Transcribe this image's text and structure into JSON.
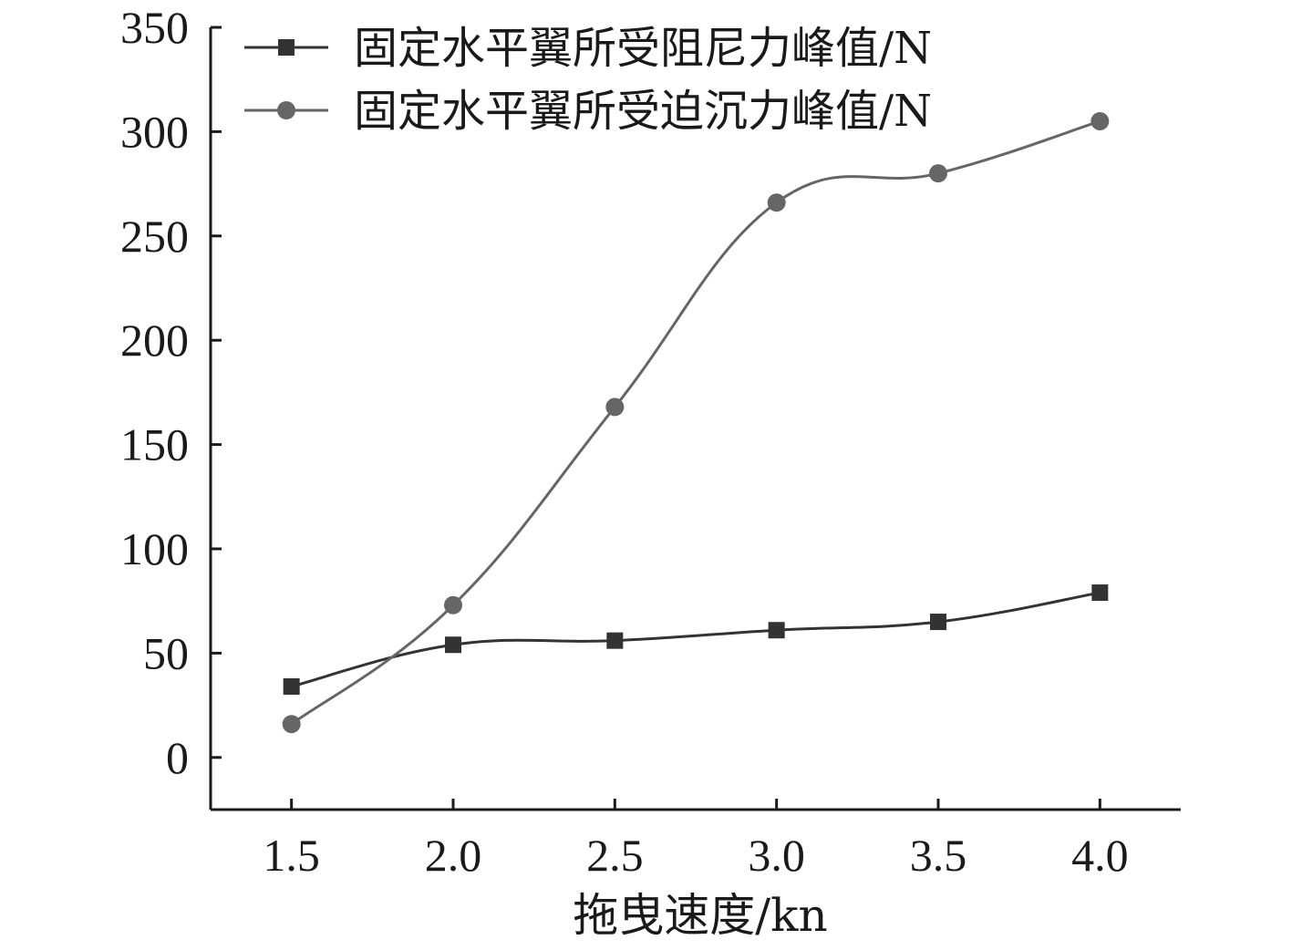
{
  "chart_data": {
    "type": "line",
    "xlabel": "拖曳速度/kn",
    "ylabel": "",
    "x": [
      1.5,
      2.0,
      2.5,
      3.0,
      3.5,
      4.0
    ],
    "x_tick_labels": [
      "1.5",
      "2.0",
      "2.5",
      "3.0",
      "3.5",
      "4.0"
    ],
    "xlim": [
      1.25,
      4.25
    ],
    "ylim": [
      -25,
      350
    ],
    "y_ticks": [
      0,
      50,
      100,
      150,
      200,
      250,
      300,
      350
    ],
    "y_tick_labels": [
      "0",
      "50",
      "100",
      "150",
      "200",
      "250",
      "300",
      "350"
    ],
    "grid": false,
    "legend_position": "top-left",
    "series": [
      {
        "name": "固定水平翼所受阻尼力峰值/N",
        "marker": "square",
        "color": "#333333",
        "values": [
          34,
          54,
          56,
          61,
          65,
          79
        ]
      },
      {
        "name": "固定水平翼所受迫沉力峰值/N",
        "marker": "circle",
        "color": "#666666",
        "values": [
          16,
          73,
          168,
          266,
          280,
          305
        ]
      }
    ]
  }
}
